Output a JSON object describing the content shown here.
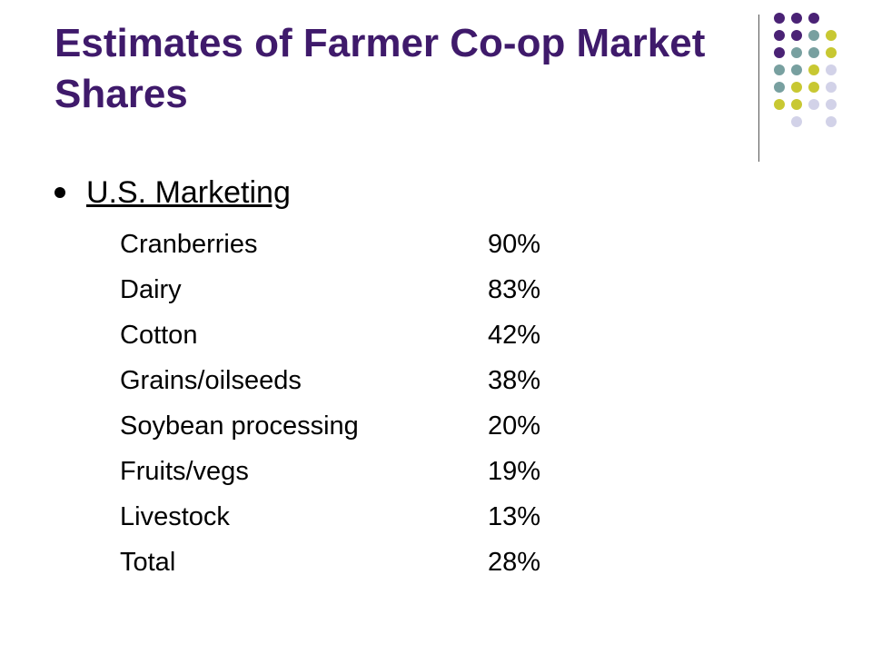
{
  "slide": {
    "title": "Estimates of Farmer Co-op Market Shares",
    "bullet": "U.S. Marketing"
  },
  "colors": {
    "title": "#3f1a6b",
    "purple_dot": "#4a2275",
    "teal_dot": "#78a0a0",
    "olive_dot": "#c8c832",
    "lavender_dot": "#d2d2e8"
  },
  "decor": {
    "dot_grid": [
      [
        "purple",
        "purple",
        "purple",
        "",
        ""
      ],
      [
        "purple",
        "purple",
        "teal",
        "olive",
        ""
      ],
      [
        "purple",
        "teal",
        "teal",
        "olive",
        ""
      ],
      [
        "teal",
        "teal",
        "olive",
        "lavender",
        ""
      ],
      [
        "teal",
        "olive",
        "olive",
        "lavender",
        ""
      ],
      [
        "olive",
        "olive",
        "lavender",
        "lavender",
        ""
      ],
      [
        "",
        "lavender",
        "",
        "lavender",
        ""
      ]
    ]
  },
  "market_shares": [
    {
      "category": "Cranberries",
      "share": "90%"
    },
    {
      "category": "Dairy",
      "share": "83%"
    },
    {
      "category": "Cotton",
      "share": "42%"
    },
    {
      "category": "Grains/oilseeds",
      "share": "38%"
    },
    {
      "category": "Soybean processing",
      "share": "20%"
    },
    {
      "category": "Fruits/vegs",
      "share": "19%"
    },
    {
      "category": "Livestock",
      "share": "13%"
    },
    {
      "category": "Total",
      "share": "28%"
    }
  ]
}
